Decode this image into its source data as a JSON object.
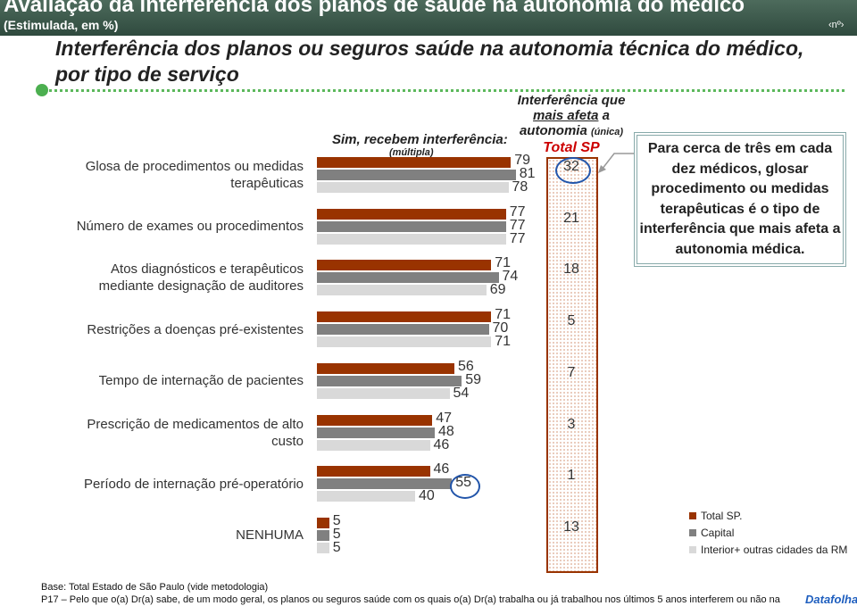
{
  "header": {
    "title": "Avaliação da interferência dos planos de saúde na autonomia do médico",
    "subtitle": "(Estimulada, em %)",
    "page": "‹nº›"
  },
  "chart_data": {
    "type": "bar",
    "orientation": "horizontal",
    "title": "Interferência dos planos ou seguros saúde na autonomia técnica do médico, por tipo de serviço",
    "subtitle": "Sim, recebem interferência:",
    "subtitle_note": "(múltipla)",
    "categories": [
      "Glosa de procedimentos ou medidas terapêuticas",
      "Número de exames ou procedimentos",
      "Atos diagnósticos e terapêuticos mediante designação de auditores",
      "Restrições a doenças pré-existentes",
      "Tempo de internação de pacientes",
      "Prescrição de medicamentos de alto custo",
      "Período de internação pré-operatório",
      "NENHUMA"
    ],
    "series": [
      {
        "name": "Total SP.",
        "color": "#993300",
        "values": [
          79,
          77,
          71,
          71,
          56,
          47,
          46,
          5
        ]
      },
      {
        "name": "Capital",
        "color": "#808080",
        "values": [
          81,
          77,
          74,
          70,
          59,
          48,
          55,
          5
        ]
      },
      {
        "name": "Interior+ outras cidades da RM",
        "color": "#d9d9d9",
        "values": [
          78,
          77,
          69,
          71,
          54,
          46,
          40,
          5
        ]
      }
    ],
    "single_choice": {
      "heading": [
        "Interferência que",
        "mais afeta",
        "a",
        "autonomia",
        "(única)"
      ],
      "label": "Total SP",
      "color": "#993300",
      "values": [
        32,
        21,
        18,
        5,
        7,
        3,
        1,
        13
      ]
    }
  },
  "callout": "Para cerca de três em cada dez médicos, glosar procedimento ou medidas terapêuticas é o tipo de interferência que mais afeta a autonomia médica.",
  "footer": {
    "base": "Base: Total Estado de São Paulo (vide metodologia)",
    "question": "P17 – Pelo que o(a) Dr(a) sabe, de um modo geral, os planos ou seguros saúde com os quais o(a) Dr(a) trabalha ou já trabalhou nos últimos 5 anos interferem ou não na",
    "logo": "Datafolha"
  }
}
